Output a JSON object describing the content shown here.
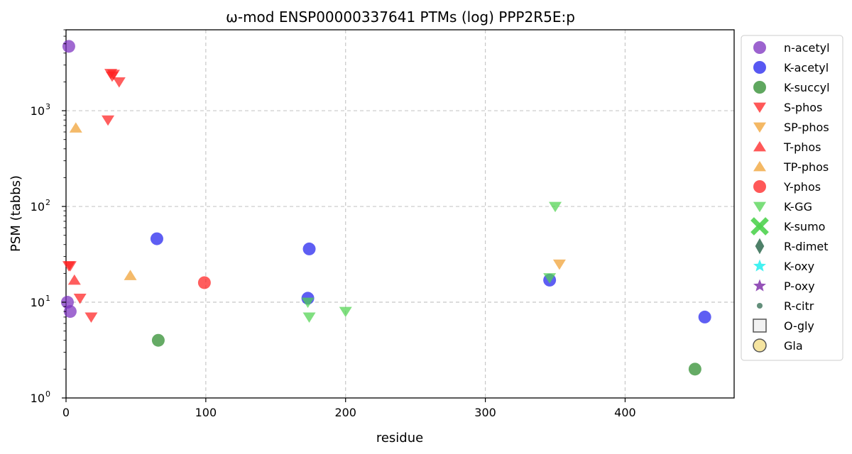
{
  "chart_data": {
    "type": "scatter",
    "title": "ω-mod ENSP00000337641 PTMs (log) PPP2R5E:p",
    "xlabel": "residue",
    "ylabel": "PSM (tabbs)",
    "xlim": [
      0,
      478
    ],
    "ylim": [
      1,
      7000
    ],
    "yscale": "log",
    "x_ticks": [
      0,
      100,
      200,
      300,
      400
    ],
    "y_ticks": [
      {
        "value": 1,
        "base": "10",
        "exp": "0"
      },
      {
        "value": 10,
        "base": "10",
        "exp": "1"
      },
      {
        "value": 100,
        "base": "10",
        "exp": "2"
      },
      {
        "value": 1000,
        "base": "10",
        "exp": "3"
      }
    ],
    "grid": true,
    "legend_position": "outside-right",
    "series": [
      {
        "name": "n-acetyl",
        "marker": "circle",
        "color": "#7b2fbf",
        "points": [
          [
            2,
            4700
          ],
          [
            1,
            10
          ],
          [
            3,
            8
          ]
        ]
      },
      {
        "name": "K-acetyl",
        "marker": "circle",
        "color": "#2020ee",
        "points": [
          [
            65,
            46
          ],
          [
            174,
            36
          ],
          [
            173,
            11
          ],
          [
            346,
            17
          ],
          [
            457,
            7
          ]
        ]
      },
      {
        "name": "K-succyl",
        "marker": "circle",
        "color": "#2a8a2a",
        "points": [
          [
            66,
            4
          ],
          [
            450,
            2
          ]
        ]
      },
      {
        "name": "S-phos",
        "marker": "triangle-down",
        "color": "#ff2020",
        "points": [
          [
            32,
            2450
          ],
          [
            34,
            2400
          ],
          [
            33,
            2300
          ],
          [
            38,
            2000
          ],
          [
            30,
            800
          ],
          [
            2,
            24
          ],
          [
            3,
            24
          ],
          [
            10,
            11
          ],
          [
            18,
            7
          ]
        ]
      },
      {
        "name": "SP-phos",
        "marker": "triangle-down",
        "color": "#f0a030",
        "points": [
          [
            353,
            25
          ]
        ]
      },
      {
        "name": "T-phos",
        "marker": "triangle-up",
        "color": "#ff2020",
        "points": [
          [
            6,
            17
          ]
        ]
      },
      {
        "name": "TP-phos",
        "marker": "triangle-up",
        "color": "#f0a030",
        "points": [
          [
            7,
            660
          ],
          [
            46,
            19
          ]
        ]
      },
      {
        "name": "Y-phos",
        "marker": "circle",
        "color": "#ff2020",
        "points": [
          [
            99,
            16
          ]
        ]
      },
      {
        "name": "K-GG",
        "marker": "triangle-down",
        "color": "#4fd34f",
        "points": [
          [
            350,
            100
          ],
          [
            346,
            18
          ],
          [
            173,
            10
          ],
          [
            174,
            7
          ],
          [
            200,
            8
          ]
        ]
      },
      {
        "name": "K-sumo",
        "marker": "x",
        "color": "#4fd34f",
        "points": []
      },
      {
        "name": "R-dimet",
        "marker": "diamond",
        "color": "#2f6a4f",
        "points": []
      },
      {
        "name": "K-oxy",
        "marker": "star",
        "color": "#2ff0f0",
        "points": []
      },
      {
        "name": "P-oxy",
        "marker": "star",
        "color": "#8a3fb0",
        "points": []
      },
      {
        "name": "R-citr",
        "marker": "small-circle",
        "color": "#2f6a4f",
        "points": []
      },
      {
        "name": "O-gly",
        "marker": "square-open",
        "color": "#555555",
        "points": []
      },
      {
        "name": "Gla",
        "marker": "circle-open",
        "color": "#f5e4a0",
        "points": []
      }
    ]
  }
}
